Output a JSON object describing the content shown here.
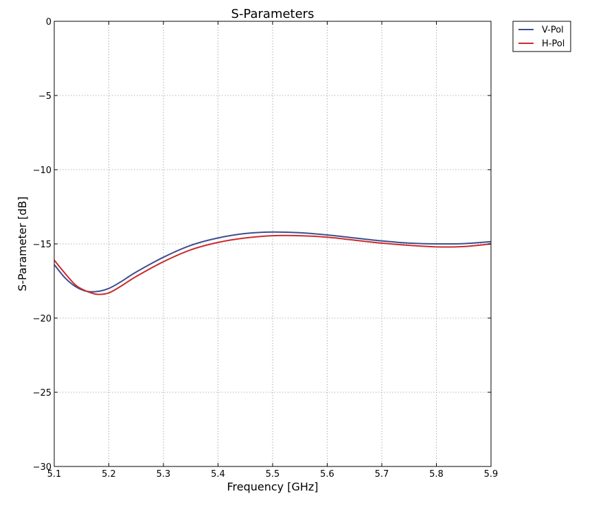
{
  "chart_data": {
    "type": "line",
    "title": "S-Parameters",
    "xlabel": "Frequency [GHz]",
    "ylabel": "S-Parameter [dB]",
    "xlim": [
      5.1,
      5.9
    ],
    "ylim": [
      -30,
      0
    ],
    "x_ticks": [
      5.1,
      5.2,
      5.3,
      5.4,
      5.5,
      5.6,
      5.7,
      5.8,
      5.9
    ],
    "x_tick_labels": [
      "5.1",
      "5.2",
      "5.3",
      "5.4",
      "5.5",
      "5.6",
      "5.7",
      "5.8",
      "5.9"
    ],
    "y_ticks": [
      0,
      -5,
      -10,
      -15,
      -20,
      -25,
      -30
    ],
    "y_tick_labels": [
      "0",
      "−5",
      "−10",
      "−15",
      "−20",
      "−25",
      "−30"
    ],
    "grid": true,
    "legend_position": "outside-top-right",
    "x": [
      5.1,
      5.12,
      5.14,
      5.16,
      5.18,
      5.2,
      5.22,
      5.25,
      5.3,
      5.35,
      5.4,
      5.45,
      5.5,
      5.55,
      5.6,
      5.65,
      5.7,
      5.75,
      5.8,
      5.85,
      5.9
    ],
    "series": [
      {
        "name": "V-Pol",
        "color": "#3a4d8f",
        "values": [
          -16.4,
          -17.3,
          -17.9,
          -18.2,
          -18.2,
          -18.0,
          -17.6,
          -16.9,
          -15.9,
          -15.1,
          -14.6,
          -14.3,
          -14.2,
          -14.25,
          -14.4,
          -14.6,
          -14.8,
          -14.95,
          -15.0,
          -14.98,
          -14.85
        ]
      },
      {
        "name": "H-Pol",
        "color": "#cc2a2a",
        "values": [
          -16.1,
          -17.0,
          -17.8,
          -18.2,
          -18.4,
          -18.3,
          -17.9,
          -17.2,
          -16.2,
          -15.4,
          -14.9,
          -14.6,
          -14.45,
          -14.45,
          -14.55,
          -14.75,
          -14.95,
          -15.1,
          -15.2,
          -15.18,
          -15.0
        ]
      }
    ]
  }
}
